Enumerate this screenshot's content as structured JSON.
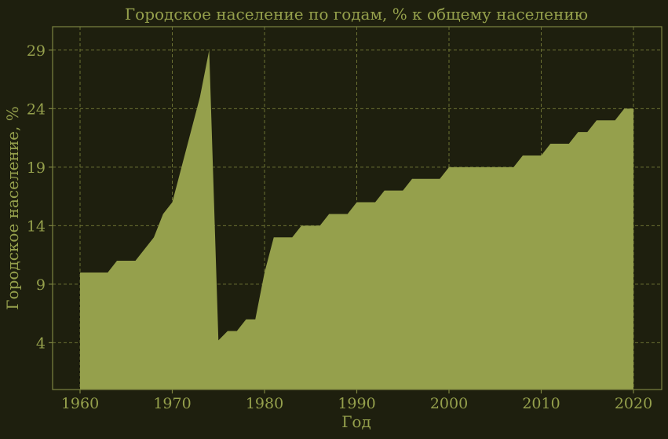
{
  "chart_data": {
    "type": "area",
    "title": "Городское население по годам, % к общему населению",
    "xlabel": "Год",
    "ylabel": "Городское население, %",
    "xlim": [
      1957,
      2020
    ],
    "ylim": [
      0,
      31
    ],
    "xticks": [
      1960,
      1970,
      1980,
      1990,
      2000,
      2010,
      2020
    ],
    "yticks": [
      4,
      9,
      14,
      19,
      24,
      29
    ],
    "grid": true,
    "colors": {
      "background": "#1e1f0e",
      "fill": "#95a04c",
      "text": "#95a04c",
      "grid": "#6b7033"
    },
    "series": [
      {
        "x": [
          1960,
          1961,
          1962,
          1963,
          1964,
          1965,
          1966,
          1967,
          1968,
          1969,
          1970,
          1971,
          1972,
          1973,
          1974,
          1975,
          1976,
          1977,
          1978,
          1979,
          1980,
          1981,
          1982,
          1983,
          1984,
          1985,
          1986,
          1987,
          1988,
          1989,
          1990,
          1991,
          1992,
          1993,
          1994,
          1995,
          1996,
          1997,
          1998,
          1999,
          2000,
          2001,
          2002,
          2003,
          2004,
          2005,
          2006,
          2007,
          2008,
          2009,
          2010,
          2011,
          2012,
          2013,
          2014,
          2015,
          2016,
          2017,
          2018,
          2019,
          2020
        ],
        "values": [
          10,
          10,
          10,
          10,
          11,
          11,
          11,
          12,
          13,
          15,
          16,
          19,
          22,
          25,
          29,
          4.2,
          5,
          5,
          6,
          6,
          10,
          13,
          13,
          13,
          14,
          14,
          14,
          15,
          15,
          15,
          16,
          16,
          16,
          17,
          17,
          17,
          18,
          18,
          18,
          18,
          19,
          19,
          19,
          19,
          19,
          19,
          19,
          19,
          20,
          20,
          20,
          21,
          21,
          21,
          22,
          22,
          23,
          23,
          23,
          24,
          24
        ]
      }
    ]
  }
}
